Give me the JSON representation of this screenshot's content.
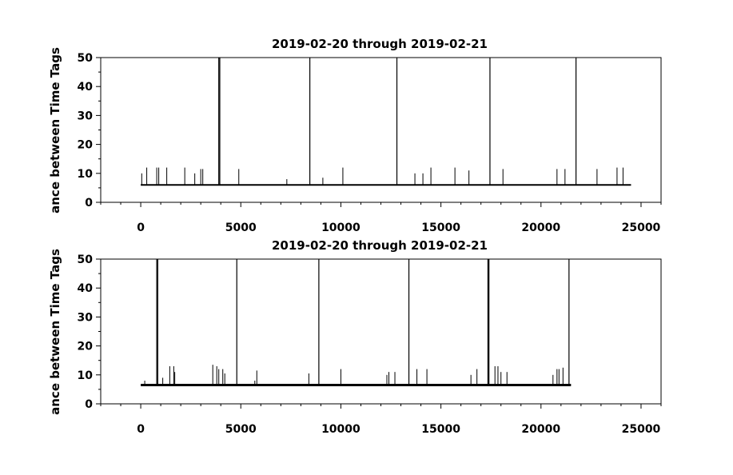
{
  "chart_data": [
    {
      "type": "line",
      "title": "2019-02-20 through 2019-02-21",
      "ylabel": "ance between Time Tags",
      "xlabel": "",
      "xlim": [
        -2000,
        26000
      ],
      "ylim": [
        0,
        50
      ],
      "xticks": [
        0,
        5000,
        10000,
        15000,
        20000,
        25000
      ],
      "yticks": [
        0,
        10,
        20,
        30,
        40,
        50
      ],
      "x_range": [
        0,
        24500
      ],
      "baseline": 6,
      "spikes": [
        {
          "x": 50,
          "y": 10
        },
        {
          "x": 300,
          "y": 12
        },
        {
          "x": 800,
          "y": 12
        },
        {
          "x": 900,
          "y": 12
        },
        {
          "x": 1300,
          "y": 12
        },
        {
          "x": 2200,
          "y": 12
        },
        {
          "x": 2700,
          "y": 10
        },
        {
          "x": 3000,
          "y": 11.5
        },
        {
          "x": 3100,
          "y": 11.5
        },
        {
          "x": 3900,
          "y": 50
        },
        {
          "x": 3950,
          "y": 50
        },
        {
          "x": 4900,
          "y": 11.5
        },
        {
          "x": 7300,
          "y": 8
        },
        {
          "x": 8450,
          "y": 50
        },
        {
          "x": 9100,
          "y": 8.5
        },
        {
          "x": 10100,
          "y": 12
        },
        {
          "x": 12800,
          "y": 50
        },
        {
          "x": 13700,
          "y": 10
        },
        {
          "x": 14100,
          "y": 10
        },
        {
          "x": 14500,
          "y": 12
        },
        {
          "x": 15700,
          "y": 12
        },
        {
          "x": 16400,
          "y": 11
        },
        {
          "x": 17450,
          "y": 50
        },
        {
          "x": 18100,
          "y": 11.5
        },
        {
          "x": 20800,
          "y": 11.5
        },
        {
          "x": 21200,
          "y": 11.5
        },
        {
          "x": 21750,
          "y": 50
        },
        {
          "x": 22800,
          "y": 11.5
        },
        {
          "x": 23800,
          "y": 12
        },
        {
          "x": 24100,
          "y": 12
        }
      ]
    },
    {
      "type": "line",
      "title": "2019-02-20 through 2019-02-21",
      "ylabel": "ance between Time Tags",
      "xlabel": "",
      "xlim": [
        -2000,
        26000
      ],
      "ylim": [
        0,
        50
      ],
      "xticks": [
        0,
        5000,
        10000,
        15000,
        20000,
        25000
      ],
      "yticks": [
        0,
        10,
        20,
        30,
        40,
        50
      ],
      "x_range": [
        0,
        21500
      ],
      "baseline": 6.5,
      "spikes": [
        {
          "x": 200,
          "y": 8
        },
        {
          "x": 800,
          "y": 50
        },
        {
          "x": 850,
          "y": 50
        },
        {
          "x": 1100,
          "y": 9
        },
        {
          "x": 1450,
          "y": 13
        },
        {
          "x": 1650,
          "y": 13
        },
        {
          "x": 1700,
          "y": 11
        },
        {
          "x": 3600,
          "y": 13.5
        },
        {
          "x": 3800,
          "y": 13
        },
        {
          "x": 3900,
          "y": 12
        },
        {
          "x": 4100,
          "y": 12
        },
        {
          "x": 4200,
          "y": 10.5
        },
        {
          "x": 4800,
          "y": 50
        },
        {
          "x": 5700,
          "y": 8
        },
        {
          "x": 5800,
          "y": 11.5
        },
        {
          "x": 8400,
          "y": 10.5
        },
        {
          "x": 8900,
          "y": 50
        },
        {
          "x": 10000,
          "y": 12
        },
        {
          "x": 12300,
          "y": 10
        },
        {
          "x": 12400,
          "y": 11
        },
        {
          "x": 12700,
          "y": 11
        },
        {
          "x": 13400,
          "y": 50
        },
        {
          "x": 13800,
          "y": 12
        },
        {
          "x": 14300,
          "y": 12
        },
        {
          "x": 16500,
          "y": 10
        },
        {
          "x": 16800,
          "y": 12
        },
        {
          "x": 17350,
          "y": 50
        },
        {
          "x": 17400,
          "y": 50
        },
        {
          "x": 17700,
          "y": 13
        },
        {
          "x": 17850,
          "y": 13
        },
        {
          "x": 18000,
          "y": 11
        },
        {
          "x": 18300,
          "y": 11
        },
        {
          "x": 20600,
          "y": 10
        },
        {
          "x": 20800,
          "y": 12
        },
        {
          "x": 20900,
          "y": 12
        },
        {
          "x": 21100,
          "y": 12.5
        },
        {
          "x": 21400,
          "y": 50
        }
      ]
    }
  ]
}
